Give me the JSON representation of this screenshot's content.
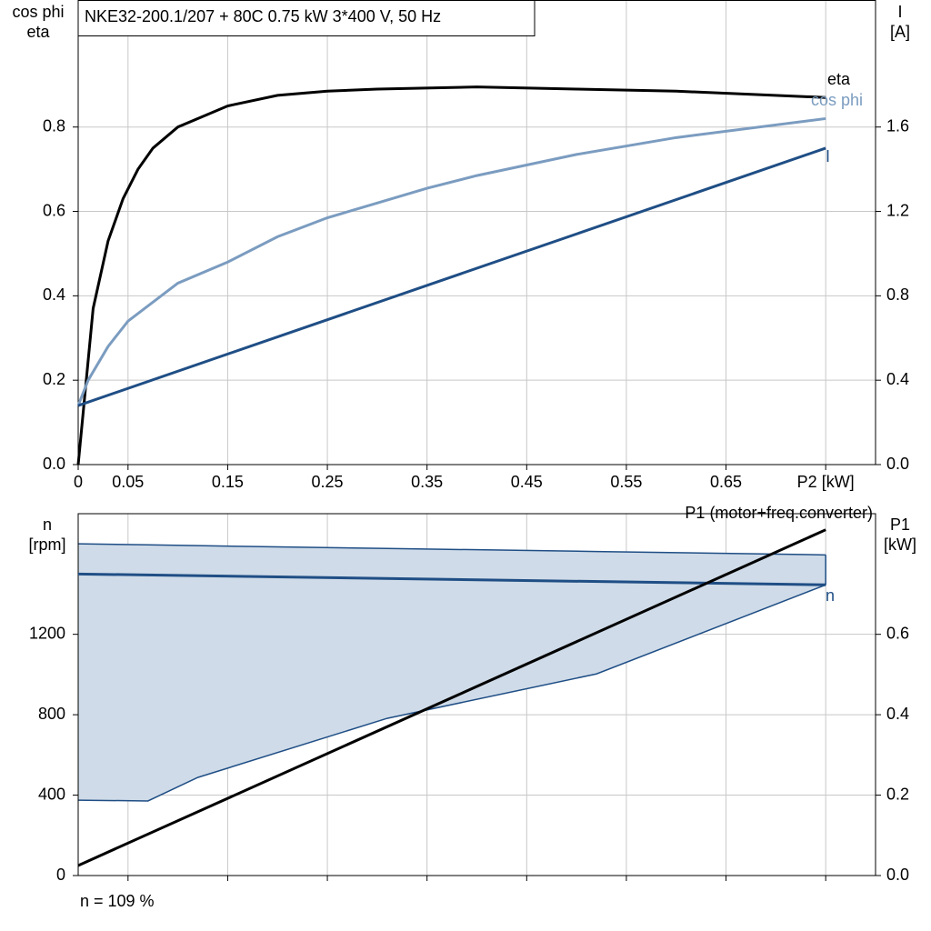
{
  "chart_data": [
    {
      "type": "line",
      "title": "NKE32-200.1/207 + 80C   0.75 kW   3*400 V, 50 Hz",
      "ylabel": [
        "cos phi",
        "eta"
      ],
      "y2label": [
        "I",
        "[A]"
      ],
      "xlim": [
        0,
        0.8
      ],
      "xticks": [
        0,
        0.05,
        0.15,
        0.25,
        0.35,
        0.45,
        0.55,
        0.65,
        {
          "value": 0.75,
          "label": "P2 [kW]"
        }
      ],
      "ylim": [
        0,
        1.1
      ],
      "yticks": [
        {
          "value": 0,
          "label": "0.0"
        },
        0.2,
        0.4,
        0.6,
        0.8
      ],
      "y2lim": [
        0,
        2.2
      ],
      "y2ticks": [
        {
          "value": 0,
          "label": "0.0"
        },
        0.4,
        0.8,
        1.2,
        1.6
      ],
      "grid": true,
      "series": [
        {
          "name": "eta",
          "color": "#000000",
          "x": [
            0,
            0.015,
            0.03,
            0.045,
            0.06,
            0.075,
            0.1,
            0.15,
            0.2,
            0.25,
            0.3,
            0.4,
            0.5,
            0.6,
            0.75
          ],
          "values": [
            0,
            0.37,
            0.53,
            0.63,
            0.7,
            0.75,
            0.8,
            0.85,
            0.875,
            0.885,
            0.89,
            0.895,
            0.89,
            0.885,
            0.87
          ]
        },
        {
          "name": "cos phi",
          "color": "#7b9cc0",
          "x": [
            0,
            0.01,
            0.03,
            0.05,
            0.1,
            0.15,
            0.2,
            0.25,
            0.3,
            0.35,
            0.4,
            0.45,
            0.5,
            0.6,
            0.75
          ],
          "values": [
            0.14,
            0.2,
            0.28,
            0.34,
            0.43,
            0.48,
            0.54,
            0.585,
            0.62,
            0.655,
            0.685,
            0.71,
            0.735,
            0.775,
            0.82
          ]
        },
        {
          "name": "I",
          "color": "#1f4e85",
          "axis": "y2",
          "x": [
            0,
            0.75
          ],
          "values": [
            0.28,
            1.5
          ]
        }
      ]
    },
    {
      "type": "line",
      "ylabel": [
        "n",
        "[rpm]"
      ],
      "y2label": [
        "P1",
        "[kW]"
      ],
      "xlim": [
        0,
        0.8
      ],
      "xticks": [
        0.05,
        0.15,
        0.25,
        0.35,
        0.45,
        0.55,
        0.65,
        0.75
      ],
      "show_xtick_labels": false,
      "ylim": [
        0,
        1800
      ],
      "yticks": [
        0,
        400,
        800,
        1200
      ],
      "y2lim": [
        0,
        0.9
      ],
      "y2ticks": [
        {
          "value": 0,
          "label": "0.0"
        },
        0.2,
        0.4,
        0.6
      ],
      "grid": true,
      "band": {
        "color": "#cfdbe8",
        "edge": "#1f4e85",
        "x": [
          0,
          0.07,
          0.12,
          0.31,
          0.52,
          0.75
        ],
        "upper": [
          1650,
          1645,
          1641,
          1627,
          1612,
          1595
        ],
        "lower": [
          375,
          371,
          488,
          782,
          1003,
          1446
        ]
      },
      "series": [
        {
          "name": "n",
          "color": "#1f4e85",
          "x": [
            0,
            0.75
          ],
          "values": [
            1500,
            1446
          ]
        },
        {
          "name": "P1 (motor+freq.converter)",
          "color": "#000000",
          "axis": "y2",
          "x": [
            0,
            0.75
          ],
          "values": [
            0.025,
            0.86
          ]
        }
      ]
    }
  ],
  "footer": "n = 109 %"
}
